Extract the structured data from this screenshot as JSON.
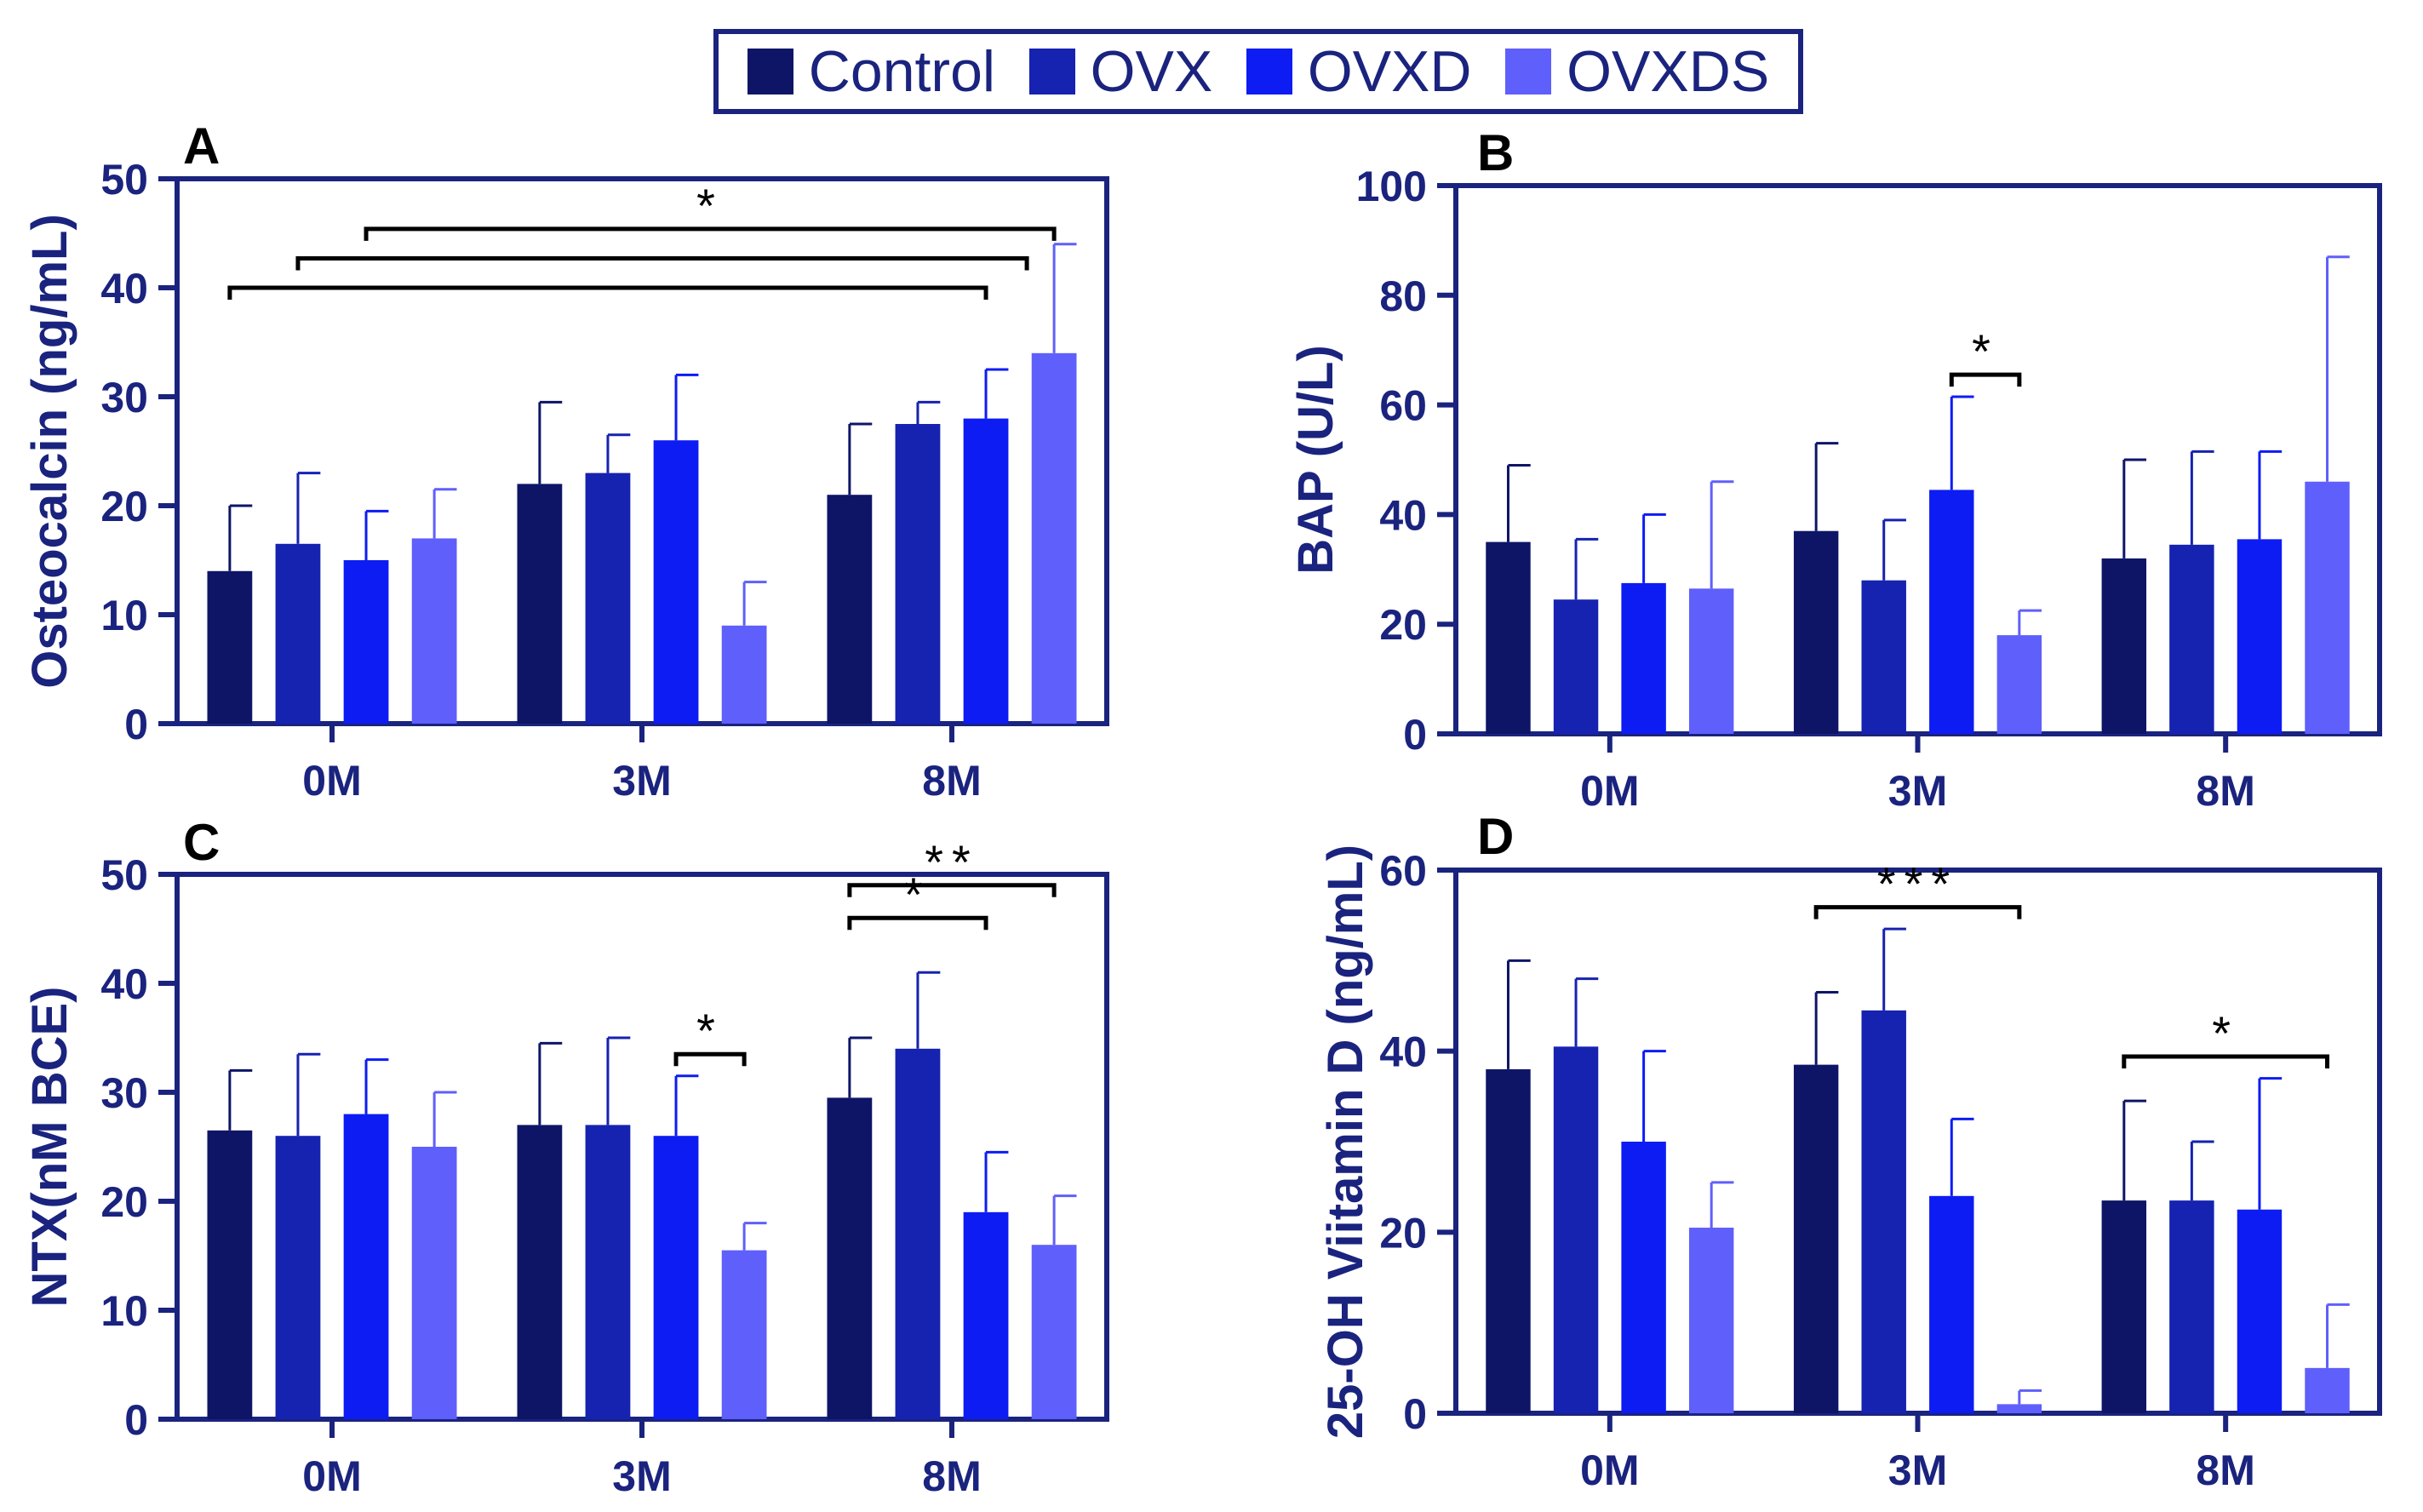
{
  "legend": {
    "items": [
      {
        "label": "Control",
        "color": "#0e1566"
      },
      {
        "label": "OVX",
        "color": "#1622b0"
      },
      {
        "label": "OVXD",
        "color": "#0d1cf2"
      },
      {
        "label": "OVXDS",
        "color": "#5f5ffb"
      }
    ]
  },
  "chart_data": [
    {
      "panel": "A",
      "type": "bar",
      "ylabel": "Osteocalcin (ng/mL)",
      "categories": [
        "0M",
        "3M",
        "8M"
      ],
      "ylim": [
        0,
        50
      ],
      "yticks": [
        0,
        10,
        20,
        30,
        40,
        50
      ],
      "series": [
        {
          "name": "Control",
          "values": [
            14,
            22,
            21
          ],
          "errors": [
            6,
            7.5,
            6.5
          ]
        },
        {
          "name": "OVX",
          "values": [
            16.5,
            23,
            27.5
          ],
          "errors": [
            6.5,
            3.5,
            2
          ]
        },
        {
          "name": "OVXD",
          "values": [
            15,
            26,
            28
          ],
          "errors": [
            4.5,
            6,
            4.5
          ]
        },
        {
          "name": "OVXDS",
          "values": [
            17,
            9,
            34
          ],
          "errors": [
            4.5,
            4,
            10
          ]
        }
      ],
      "brackets": [
        {
          "from": [
            0,
            0
          ],
          "to": [
            2,
            2
          ],
          "level": 0,
          "label": ""
        },
        {
          "from": [
            0,
            1
          ],
          "to": [
            2,
            2.6
          ],
          "level": 1,
          "label": ""
        },
        {
          "from": [
            0,
            2
          ],
          "to": [
            2,
            3
          ],
          "level": 2,
          "label": "*"
        }
      ]
    },
    {
      "panel": "B",
      "type": "bar",
      "ylabel": "BAP (U/L)",
      "categories": [
        "0M",
        "3M",
        "8M"
      ],
      "ylim": [
        0,
        100
      ],
      "yticks": [
        0,
        20,
        40,
        60,
        80,
        100
      ],
      "series": [
        {
          "name": "Control",
          "values": [
            35,
            37,
            32
          ],
          "errors": [
            14,
            16,
            18
          ]
        },
        {
          "name": "OVX",
          "values": [
            24.5,
            28,
            34.5
          ],
          "errors": [
            11,
            11,
            17
          ]
        },
        {
          "name": "OVXD",
          "values": [
            27.5,
            44.5,
            35.5
          ],
          "errors": [
            12.5,
            17,
            16
          ]
        },
        {
          "name": "OVXDS",
          "values": [
            26.5,
            18,
            46
          ],
          "errors": [
            19.5,
            4.5,
            41
          ]
        }
      ],
      "brackets": [
        {
          "from": [
            1,
            2
          ],
          "to": [
            1,
            3
          ],
          "level": 0,
          "label": "*"
        }
      ]
    },
    {
      "panel": "C",
      "type": "bar",
      "ylabel": "NTX(nM BCE)",
      "categories": [
        "0M",
        "3M",
        "8M"
      ],
      "ylim": [
        0,
        50
      ],
      "yticks": [
        0,
        10,
        20,
        30,
        40,
        50
      ],
      "series": [
        {
          "name": "Control",
          "values": [
            26.5,
            27,
            29.5
          ],
          "errors": [
            5.5,
            7.5,
            5.5
          ]
        },
        {
          "name": "OVX",
          "values": [
            26,
            27,
            34
          ],
          "errors": [
            7.5,
            8,
            7
          ]
        },
        {
          "name": "OVXD",
          "values": [
            28,
            26,
            19
          ],
          "errors": [
            5,
            5.5,
            5.5
          ]
        },
        {
          "name": "OVXDS",
          "values": [
            25,
            15.5,
            16
          ],
          "errors": [
            5,
            2.5,
            4.5
          ]
        }
      ],
      "brackets": [
        {
          "from": [
            1,
            2
          ],
          "to": [
            1,
            3
          ],
          "level": 0,
          "label": "*"
        },
        {
          "from": [
            2,
            0
          ],
          "to": [
            2,
            2
          ],
          "level": 1,
          "label": "*"
        },
        {
          "from": [
            2,
            0
          ],
          "to": [
            2,
            3
          ],
          "level": 2,
          "label": "**"
        }
      ]
    },
    {
      "panel": "D",
      "type": "bar",
      "ylabel": "25-OH Viitamin D (ng/mL)",
      "categories": [
        "0M",
        "3M",
        "8M"
      ],
      "ylim": [
        0,
        60
      ],
      "yticks": [
        0,
        20,
        40,
        60
      ],
      "series": [
        {
          "name": "Control",
          "values": [
            38,
            38.5,
            23.5
          ],
          "errors": [
            12,
            8,
            11
          ]
        },
        {
          "name": "OVX",
          "values": [
            40.5,
            44.5,
            23.5
          ],
          "errors": [
            7.5,
            9,
            6.5
          ]
        },
        {
          "name": "OVXD",
          "values": [
            30,
            24,
            22.5
          ],
          "errors": [
            10,
            8.5,
            14.5
          ]
        },
        {
          "name": "OVXDS",
          "values": [
            20.5,
            1,
            5
          ],
          "errors": [
            5,
            1.5,
            7
          ]
        }
      ],
      "brackets": [
        {
          "from": [
            1,
            0
          ],
          "to": [
            1,
            3
          ],
          "level": 0,
          "label": "***"
        },
        {
          "from": [
            2,
            0
          ],
          "to": [
            2,
            3
          ],
          "level": 0,
          "label": "*"
        }
      ]
    }
  ]
}
